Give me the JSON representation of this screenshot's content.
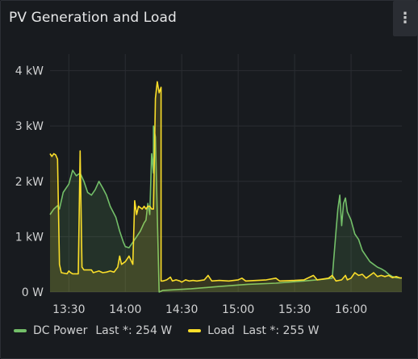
{
  "panel": {
    "title": "PV Generation and Load",
    "menu_icon": "vertical-ellipsis-icon"
  },
  "legend": [
    {
      "name": "DC Power",
      "stat": "Last *: 254 W",
      "color": "#73bf69"
    },
    {
      "name": "Load",
      "stat": "Last *: 255 W",
      "color": "#fade2a"
    }
  ],
  "chart_data": {
    "type": "line",
    "title": "PV Generation and Load",
    "x_ticks": [
      "13:30",
      "14:00",
      "14:30",
      "15:00",
      "15:30",
      "16:00"
    ],
    "y_ticks": [
      "0 W",
      "1 kW",
      "2 kW",
      "3 kW",
      "4 kW"
    ],
    "x_range": [
      "13:20",
      "16:27"
    ],
    "ylim": [
      0,
      4300
    ],
    "ylabel_unit": "W",
    "grid": true,
    "legend_position": "bottom-left",
    "fill": "area-under-series",
    "series": [
      {
        "name": "DC Power",
        "color": "#73bf69",
        "points": [
          [
            "13:20",
            1400
          ],
          [
            "13:22",
            1500
          ],
          [
            "13:24",
            1560
          ],
          [
            "13:25",
            1500
          ],
          [
            "13:27",
            1800
          ],
          [
            "13:30",
            1950
          ],
          [
            "13:32",
            2200
          ],
          [
            "13:34",
            2100
          ],
          [
            "13:36",
            2150
          ],
          [
            "13:38",
            2000
          ],
          [
            "13:40",
            1800
          ],
          [
            "13:42",
            1750
          ],
          [
            "13:44",
            1850
          ],
          [
            "13:46",
            2000
          ],
          [
            "13:48",
            1880
          ],
          [
            "13:50",
            1750
          ],
          [
            "13:52",
            1550
          ],
          [
            "13:55",
            1350
          ],
          [
            "13:57",
            1100
          ],
          [
            "13:59",
            900
          ],
          [
            "14:00",
            820
          ],
          [
            "14:02",
            800
          ],
          [
            "14:04",
            900
          ],
          [
            "14:06",
            1000
          ],
          [
            "14:08",
            1100
          ],
          [
            "14:10",
            1250
          ],
          [
            "14:11",
            1300
          ],
          [
            "14:12",
            1600
          ],
          [
            "14:13",
            1400
          ],
          [
            "14:14",
            2500
          ],
          [
            "14:15",
            2150
          ],
          [
            "14:15",
            3000
          ],
          [
            "14:16",
            2800
          ],
          [
            "14:18",
            0
          ],
          [
            "14:20",
            30
          ],
          [
            "14:35",
            60
          ],
          [
            "14:50",
            100
          ],
          [
            "15:05",
            140
          ],
          [
            "15:20",
            160
          ],
          [
            "15:35",
            200
          ],
          [
            "15:45",
            230
          ],
          [
            "15:50",
            250
          ],
          [
            "15:52",
            1100
          ],
          [
            "15:53",
            1500
          ],
          [
            "15:54",
            1750
          ],
          [
            "15:55",
            1200
          ],
          [
            "15:56",
            1600
          ],
          [
            "15:57",
            1700
          ],
          [
            "15:58",
            1450
          ],
          [
            "16:00",
            1300
          ],
          [
            "16:02",
            1050
          ],
          [
            "16:04",
            950
          ],
          [
            "16:06",
            750
          ],
          [
            "16:08",
            650
          ],
          [
            "16:10",
            550
          ],
          [
            "16:12",
            500
          ],
          [
            "16:14",
            450
          ],
          [
            "16:16",
            420
          ],
          [
            "16:18",
            380
          ],
          [
            "16:20",
            320
          ],
          [
            "16:22",
            280
          ],
          [
            "16:24",
            260
          ],
          [
            "16:26",
            254
          ],
          [
            "16:27",
            254
          ]
        ]
      },
      {
        "name": "Load",
        "color": "#fade2a",
        "points": [
          [
            "13:20",
            2500
          ],
          [
            "13:21",
            2450
          ],
          [
            "13:22",
            2500
          ],
          [
            "13:23",
            2480
          ],
          [
            "13:24",
            2400
          ],
          [
            "13:25",
            500
          ],
          [
            "13:26",
            350
          ],
          [
            "13:29",
            330
          ],
          [
            "13:30",
            380
          ],
          [
            "13:31",
            350
          ],
          [
            "13:32",
            330
          ],
          [
            "13:35",
            330
          ],
          [
            "13:36",
            2550
          ],
          [
            "13:37",
            450
          ],
          [
            "13:38",
            400
          ],
          [
            "13:42",
            400
          ],
          [
            "13:43",
            350
          ],
          [
            "13:46",
            380
          ],
          [
            "13:48",
            350
          ],
          [
            "13:50",
            360
          ],
          [
            "13:52",
            380
          ],
          [
            "13:54",
            360
          ],
          [
            "13:56",
            450
          ],
          [
            "13:57",
            650
          ],
          [
            "13:58",
            500
          ],
          [
            "14:00",
            550
          ],
          [
            "14:02",
            650
          ],
          [
            "14:04",
            500
          ],
          [
            "14:05",
            1650
          ],
          [
            "14:06",
            1400
          ],
          [
            "14:07",
            1550
          ],
          [
            "14:09",
            1500
          ],
          [
            "14:10",
            1550
          ],
          [
            "14:11",
            1500
          ],
          [
            "14:12",
            1550
          ],
          [
            "14:13",
            1550
          ],
          [
            "14:14",
            1500
          ],
          [
            "14:15",
            1500
          ],
          [
            "14:16",
            3500
          ],
          [
            "14:17",
            3800
          ],
          [
            "14:18",
            3600
          ],
          [
            "14:19",
            3700
          ],
          [
            "14:19",
            200
          ],
          [
            "14:20",
            200
          ],
          [
            "14:22",
            220
          ],
          [
            "14:24",
            270
          ],
          [
            "14:25",
            200
          ],
          [
            "14:27",
            220
          ],
          [
            "14:29",
            200
          ],
          [
            "14:30",
            180
          ],
          [
            "14:32",
            220
          ],
          [
            "14:34",
            200
          ],
          [
            "14:36",
            210
          ],
          [
            "14:38",
            200
          ],
          [
            "14:42",
            220
          ],
          [
            "14:44",
            300
          ],
          [
            "14:46",
            200
          ],
          [
            "14:50",
            210
          ],
          [
            "14:55",
            200
          ],
          [
            "15:00",
            220
          ],
          [
            "15:02",
            250
          ],
          [
            "15:04",
            200
          ],
          [
            "15:10",
            210
          ],
          [
            "15:15",
            220
          ],
          [
            "15:20",
            250
          ],
          [
            "15:22",
            200
          ],
          [
            "15:30",
            210
          ],
          [
            "15:35",
            220
          ],
          [
            "15:40",
            300
          ],
          [
            "15:42",
            220
          ],
          [
            "15:48",
            250
          ],
          [
            "15:50",
            300
          ],
          [
            "15:52",
            200
          ],
          [
            "15:55",
            220
          ],
          [
            "15:57",
            300
          ],
          [
            "15:58",
            220
          ],
          [
            "16:00",
            250
          ],
          [
            "16:02",
            350
          ],
          [
            "16:04",
            300
          ],
          [
            "16:06",
            320
          ],
          [
            "16:08",
            250
          ],
          [
            "16:10",
            300
          ],
          [
            "16:12",
            350
          ],
          [
            "16:14",
            280
          ],
          [
            "16:16",
            300
          ],
          [
            "16:18",
            280
          ],
          [
            "16:20",
            300
          ],
          [
            "16:22",
            260
          ],
          [
            "16:24",
            280
          ],
          [
            "16:26",
            255
          ],
          [
            "16:27",
            255
          ]
        ]
      }
    ]
  }
}
